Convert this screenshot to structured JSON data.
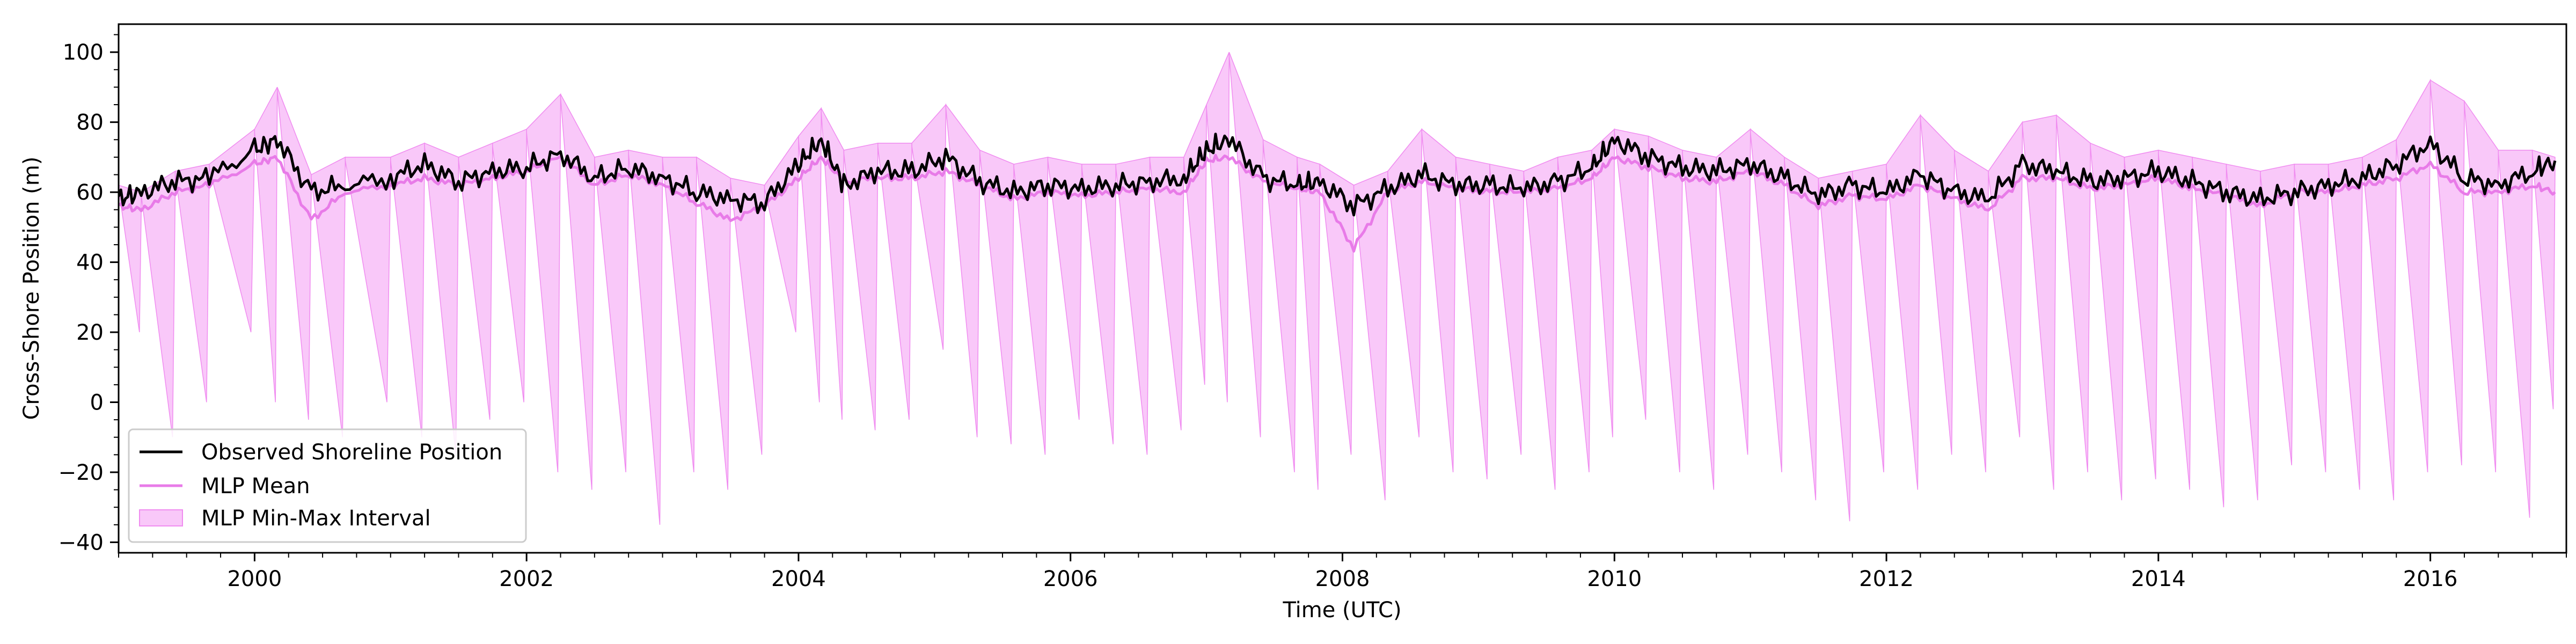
{
  "chart_data": {
    "type": "line",
    "title": "",
    "xlabel": "Time (UTC)",
    "ylabel": "Cross-Shore Position (m)",
    "xlim": [
      "1999-01-01",
      "2017-01-01"
    ],
    "ylim": [
      -43,
      108
    ],
    "x_ticks": [
      "2000",
      "2002",
      "2004",
      "2006",
      "2008",
      "2010",
      "2012",
      "2014",
      "2016"
    ],
    "y_ticks": [
      -40,
      -20,
      0,
      20,
      40,
      60,
      80,
      100
    ],
    "grid": false,
    "legend_position": "lower-left",
    "legend": [
      {
        "label": "Observed Shoreline Position",
        "color": "#000000",
        "kind": "line"
      },
      {
        "label": "MLP Mean",
        "color": "#ee82ee",
        "kind": "line"
      },
      {
        "label": "MLP Min-Max Interval",
        "color": "#f7c6f7",
        "kind": "patch"
      }
    ],
    "colors": {
      "observed": "#000000",
      "mean": "#e87be8",
      "band_fill": "#f9c8f9",
      "band_edge": "#f08cf0"
    },
    "series": [
      {
        "name": "Observed Shoreline Position",
        "x": [
          "1999-01",
          "1999-03",
          "1999-06",
          "1999-09",
          "2000-01",
          "2000-03",
          "2000-06",
          "2000-09",
          "2001-01",
          "2001-04",
          "2001-07",
          "2001-10",
          "2002-01",
          "2002-04",
          "2002-07",
          "2002-10",
          "2003-01",
          "2003-04",
          "2003-07",
          "2003-10",
          "2004-01",
          "2004-03",
          "2004-05",
          "2004-08",
          "2004-11",
          "2005-02",
          "2005-05",
          "2005-08",
          "2005-11",
          "2006-02",
          "2006-05",
          "2006-08",
          "2006-11",
          "2007-01",
          "2007-03",
          "2007-06",
          "2007-09",
          "2007-11",
          "2008-02",
          "2008-05",
          "2008-08",
          "2008-11",
          "2009-02",
          "2009-05",
          "2009-08",
          "2009-11",
          "2010-01",
          "2010-04",
          "2010-07",
          "2010-10",
          "2011-01",
          "2011-04",
          "2011-07",
          "2011-10",
          "2012-01",
          "2012-04",
          "2012-07",
          "2012-10",
          "2013-01",
          "2013-04",
          "2013-07",
          "2013-10",
          "2014-01",
          "2014-04",
          "2014-07",
          "2014-10",
          "2015-01",
          "2015-04",
          "2015-07",
          "2015-10",
          "2016-01",
          "2016-04",
          "2016-07",
          "2016-10",
          "2016-12"
        ],
        "values": [
          58,
          60,
          63,
          64,
          72,
          75,
          60,
          62,
          64,
          68,
          63,
          66,
          67,
          71,
          64,
          67,
          64,
          60,
          58,
          57,
          68,
          75,
          62,
          66,
          66,
          70,
          63,
          60,
          62,
          61,
          62,
          63,
          64,
          72,
          75,
          64,
          62,
          63,
          56,
          61,
          65,
          62,
          62,
          61,
          63,
          67,
          75,
          70,
          67,
          66,
          68,
          64,
          59,
          62,
          60,
          65,
          60,
          58,
          68,
          66,
          63,
          64,
          66,
          63,
          60,
          58,
          60,
          62,
          64,
          68,
          74,
          64,
          62,
          66,
          69
        ]
      },
      {
        "name": "MLP Mean",
        "x": [
          "1999-01",
          "1999-03",
          "1999-06",
          "1999-09",
          "2000-01",
          "2000-03",
          "2000-06",
          "2000-09",
          "2001-01",
          "2001-04",
          "2001-07",
          "2001-10",
          "2002-01",
          "2002-04",
          "2002-07",
          "2002-10",
          "2003-01",
          "2003-04",
          "2003-07",
          "2003-10",
          "2004-01",
          "2004-03",
          "2004-05",
          "2004-08",
          "2004-11",
          "2005-02",
          "2005-05",
          "2005-08",
          "2005-11",
          "2006-02",
          "2006-05",
          "2006-08",
          "2006-11",
          "2007-01",
          "2007-03",
          "2007-06",
          "2007-09",
          "2007-11",
          "2008-02",
          "2008-05",
          "2008-08",
          "2008-11",
          "2009-02",
          "2009-05",
          "2009-08",
          "2009-11",
          "2010-01",
          "2010-04",
          "2010-07",
          "2010-10",
          "2011-01",
          "2011-04",
          "2011-07",
          "2011-10",
          "2012-01",
          "2012-04",
          "2012-07",
          "2012-10",
          "2013-01",
          "2013-04",
          "2013-07",
          "2013-10",
          "2014-01",
          "2014-04",
          "2014-07",
          "2014-10",
          "2015-01",
          "2015-04",
          "2015-07",
          "2015-10",
          "2016-01",
          "2016-04",
          "2016-07",
          "2016-10",
          "2016-12"
        ],
        "values": [
          56,
          55,
          60,
          62,
          68,
          70,
          52,
          60,
          62,
          64,
          62,
          64,
          66,
          70,
          62,
          65,
          62,
          57,
          52,
          56,
          64,
          70,
          63,
          64,
          64,
          66,
          62,
          58,
          60,
          59,
          60,
          61,
          60,
          69,
          70,
          63,
          61,
          60,
          44,
          60,
          63,
          61,
          60,
          60,
          61,
          64,
          70,
          67,
          64,
          63,
          66,
          62,
          56,
          59,
          58,
          62,
          58,
          55,
          64,
          64,
          61,
          62,
          64,
          61,
          59,
          56,
          60,
          60,
          62,
          64,
          68,
          60,
          60,
          62,
          60
        ]
      },
      {
        "name": "MLP Min-Max Interval",
        "x": [
          "1999-01",
          "1999-03",
          "1999-06",
          "1999-09",
          "2000-01",
          "2000-03",
          "2000-06",
          "2000-09",
          "2001-01",
          "2001-04",
          "2001-07",
          "2001-10",
          "2002-01",
          "2002-04",
          "2002-07",
          "2002-10",
          "2003-01",
          "2003-04",
          "2003-07",
          "2003-10",
          "2004-01",
          "2004-03",
          "2004-05",
          "2004-08",
          "2004-11",
          "2005-02",
          "2005-05",
          "2005-08",
          "2005-11",
          "2006-02",
          "2006-05",
          "2006-08",
          "2006-11",
          "2007-01",
          "2007-03",
          "2007-06",
          "2007-09",
          "2007-11",
          "2008-02",
          "2008-05",
          "2008-08",
          "2008-11",
          "2009-02",
          "2009-05",
          "2009-08",
          "2009-11",
          "2010-01",
          "2010-04",
          "2010-07",
          "2010-10",
          "2011-01",
          "2011-04",
          "2011-07",
          "2011-10",
          "2012-01",
          "2012-04",
          "2012-07",
          "2012-10",
          "2013-01",
          "2013-04",
          "2013-07",
          "2013-10",
          "2014-01",
          "2014-04",
          "2014-07",
          "2014-10",
          "2015-01",
          "2015-04",
          "2015-07",
          "2015-10",
          "2016-01",
          "2016-04",
          "2016-07",
          "2016-10",
          "2016-12"
        ],
        "upper": [
          62,
          60,
          66,
          68,
          78,
          90,
          65,
          70,
          70,
          74,
          70,
          74,
          78,
          88,
          70,
          72,
          70,
          70,
          64,
          62,
          76,
          84,
          72,
          74,
          74,
          85,
          72,
          68,
          70,
          68,
          68,
          70,
          70,
          85,
          100,
          75,
          70,
          68,
          62,
          66,
          78,
          70,
          68,
          66,
          70,
          72,
          78,
          76,
          72,
          70,
          78,
          70,
          64,
          66,
          68,
          82,
          72,
          66,
          80,
          82,
          74,
          70,
          72,
          70,
          68,
          66,
          68,
          68,
          70,
          75,
          92,
          86,
          72,
          72,
          70
        ],
        "lower": [
          40,
          20,
          -10,
          0,
          20,
          0,
          -5,
          -10,
          0,
          -10,
          -15,
          -5,
          0,
          -20,
          -25,
          -20,
          -35,
          -20,
          -25,
          -15,
          20,
          0,
          -5,
          -8,
          -5,
          15,
          -10,
          -12,
          -15,
          -5,
          -12,
          -15,
          -8,
          5,
          0,
          -10,
          -20,
          -25,
          -15,
          -28,
          -10,
          -20,
          -22,
          -15,
          -25,
          -20,
          -10,
          -5,
          -20,
          -25,
          -15,
          -20,
          -28,
          -34,
          -20,
          -25,
          -15,
          -20,
          -10,
          -25,
          -20,
          -28,
          -22,
          -25,
          -30,
          -28,
          -18,
          -20,
          -25,
          -28,
          -20,
          -18,
          -20,
          -33,
          -2
        ]
      }
    ]
  }
}
